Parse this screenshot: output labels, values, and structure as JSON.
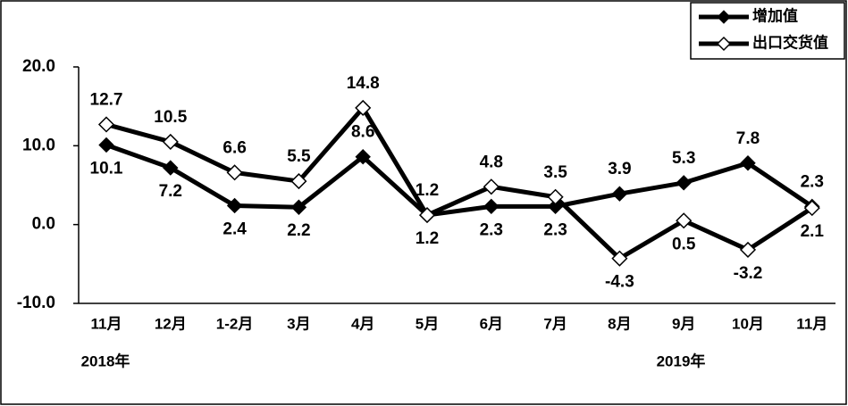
{
  "chart_data": {
    "type": "line",
    "categories": [
      "11月",
      "12月",
      "1-2月",
      "3月",
      "4月",
      "5月",
      "6月",
      "7月",
      "8月",
      "9月",
      "10月",
      "11月"
    ],
    "annotations": [
      "2018年",
      "2019年"
    ],
    "series": [
      {
        "name": "增加值",
        "color": "#000000",
        "marker": "filled-diamond",
        "values": [
          10.1,
          7.2,
          2.4,
          2.2,
          8.6,
          1.2,
          2.3,
          2.3,
          3.9,
          5.3,
          7.8,
          2.3
        ]
      },
      {
        "name": "出口交货值",
        "color": "#000000",
        "marker": "open-diamond",
        "values": [
          12.7,
          10.5,
          6.6,
          5.5,
          14.8,
          1.2,
          4.8,
          3.5,
          -4.3,
          0.5,
          -3.2,
          2.1
        ]
      }
    ],
    "ylim": [
      -10,
      20
    ],
    "yticks": [
      {
        "value": -10,
        "label": "-10.0"
      },
      {
        "value": 0,
        "label": "0.0"
      },
      {
        "value": 10,
        "label": "10.0"
      },
      {
        "value": 20,
        "label": "20.0"
      }
    ],
    "grid": false,
    "legend": "top-right"
  }
}
